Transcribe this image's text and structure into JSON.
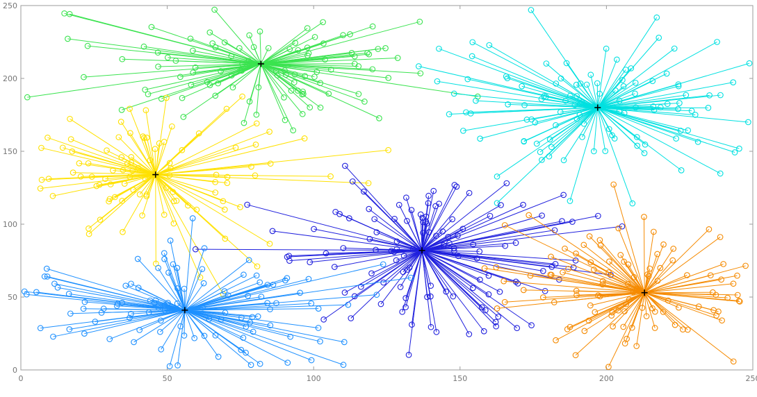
{
  "figure": {
    "background": "#ffffff",
    "kind": "cluster scatter plot with radial lines from centroids"
  },
  "chart_data": {
    "type": "scatter",
    "title": "",
    "xlabel": "",
    "ylabel": "",
    "grid": false,
    "legend": null,
    "xlim": [
      0,
      250
    ],
    "ylim": [
      0,
      250
    ],
    "xticks": [
      0,
      50,
      100,
      150,
      200,
      250
    ],
    "yticks": [
      0,
      50,
      100,
      150,
      200,
      250
    ],
    "axis": {
      "box_color": "#9b9b9b",
      "tick_length": 5,
      "tick_label_color": "#757575",
      "tick_font_size": 11
    },
    "point_marker": {
      "symbol": "o",
      "radius": 3.8,
      "stroke_width": 1.1,
      "fill": "none"
    },
    "centroid_marker": {
      "symbol": "+",
      "color": "#000000",
      "size": 9,
      "stroke_width": 1.6
    },
    "line_width": 1,
    "seed": 42,
    "clusters": [
      {
        "name": "green-cluster",
        "color": "#3ae34f",
        "centroid": [
          82,
          210
        ],
        "count": 105,
        "spread_x": 30,
        "spread_y": 22
      },
      {
        "name": "cyan-cluster",
        "color": "#00e0e0",
        "centroid": [
          197,
          180
        ],
        "count": 115,
        "spread_x": 30,
        "spread_y": 25
      },
      {
        "name": "yellow-cluster",
        "color": "#ffe100",
        "centroid": [
          46,
          134
        ],
        "count": 100,
        "spread_x": 26,
        "spread_y": 25
      },
      {
        "name": "blue-cluster",
        "color": "#1f1fdd",
        "centroid": [
          137,
          82
        ],
        "count": 125,
        "spread_x": 26,
        "spread_y": 28
      },
      {
        "name": "skyblue-cluster",
        "color": "#1e90ff",
        "centroid": [
          56,
          41
        ],
        "count": 110,
        "spread_x": 30,
        "spread_y": 22
      },
      {
        "name": "orange-cluster",
        "color": "#f58a00",
        "centroid": [
          213,
          53
        ],
        "count": 105,
        "spread_x": 25,
        "spread_y": 26
      }
    ]
  }
}
